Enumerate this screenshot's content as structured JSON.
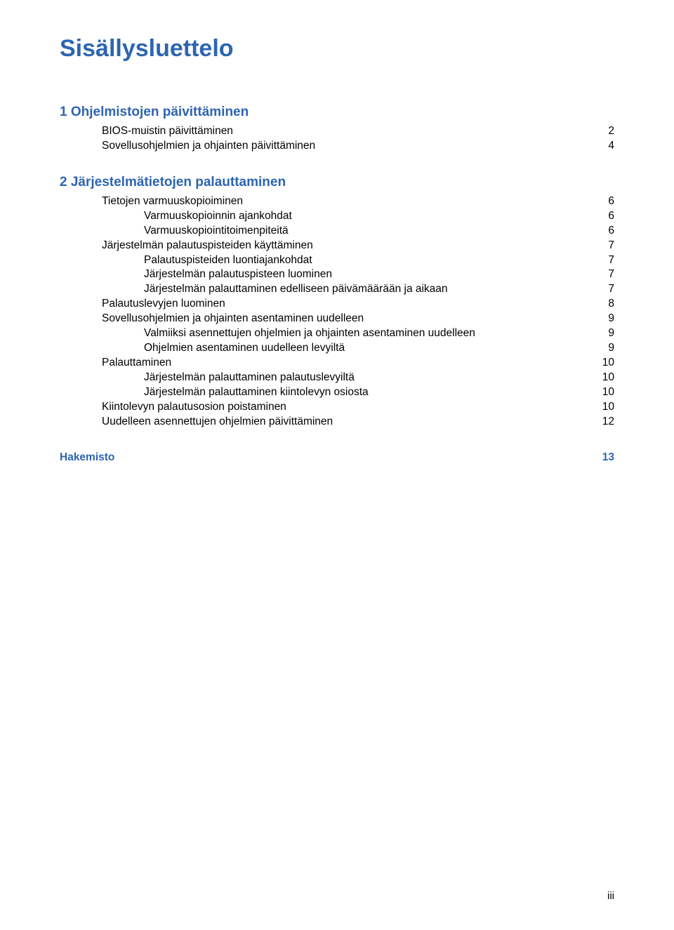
{
  "colors": {
    "title_color": "#2d65b0",
    "chapter_color": "#2d65b0",
    "text_color": "#000000",
    "index_color": "#2d65b0",
    "background": "#ffffff"
  },
  "doc_title": "Sisällysluettelo",
  "chapters": [
    {
      "heading": "1  Ohjelmistojen päivittäminen",
      "entries": [
        {
          "indent": 1,
          "label": "BIOS-muistin päivittäminen",
          "page": "2"
        },
        {
          "indent": 1,
          "label": "Sovellusohjelmien ja ohjainten päivittäminen",
          "page": "4"
        }
      ]
    },
    {
      "heading": "2  Järjestelmätietojen palauttaminen",
      "entries": [
        {
          "indent": 1,
          "label": "Tietojen varmuuskopioiminen",
          "page": "6"
        },
        {
          "indent": 2,
          "label": "Varmuuskopioinnin ajankohdat",
          "page": "6"
        },
        {
          "indent": 2,
          "label": "Varmuuskopiointitoimenpiteitä",
          "page": "6"
        },
        {
          "indent": 1,
          "label": "Järjestelmän palautuspisteiden käyttäminen",
          "page": "7"
        },
        {
          "indent": 2,
          "label": "Palautuspisteiden luontiajankohdat",
          "page": "7"
        },
        {
          "indent": 2,
          "label": "Järjestelmän palautuspisteen luominen",
          "page": "7"
        },
        {
          "indent": 2,
          "label": "Järjestelmän palauttaminen edelliseen päivämäärään ja aikaan",
          "page": "7"
        },
        {
          "indent": 1,
          "label": "Palautuslevyjen luominen",
          "page": "8"
        },
        {
          "indent": 1,
          "label": "Sovellusohjelmien ja ohjainten asentaminen uudelleen",
          "page": "9"
        },
        {
          "indent": 2,
          "label": "Valmiiksi asennettujen ohjelmien ja ohjainten asentaminen uudelleen",
          "page": "9"
        },
        {
          "indent": 2,
          "label": "Ohjelmien asentaminen uudelleen levyiltä",
          "page": "9"
        },
        {
          "indent": 1,
          "label": "Palauttaminen",
          "page": "10"
        },
        {
          "indent": 2,
          "label": "Järjestelmän palauttaminen palautuslevyiltä",
          "page": "10"
        },
        {
          "indent": 2,
          "label": "Järjestelmän palauttaminen kiintolevyn osiosta",
          "page": "10"
        },
        {
          "indent": 1,
          "label": "Kiintolevyn palautusosion poistaminen",
          "page": "10"
        },
        {
          "indent": 1,
          "label": "Uudelleen asennettujen ohjelmien päivittäminen",
          "page": "12"
        }
      ]
    }
  ],
  "index": {
    "label": "Hakemisto",
    "page": "13"
  },
  "footer": "iii"
}
